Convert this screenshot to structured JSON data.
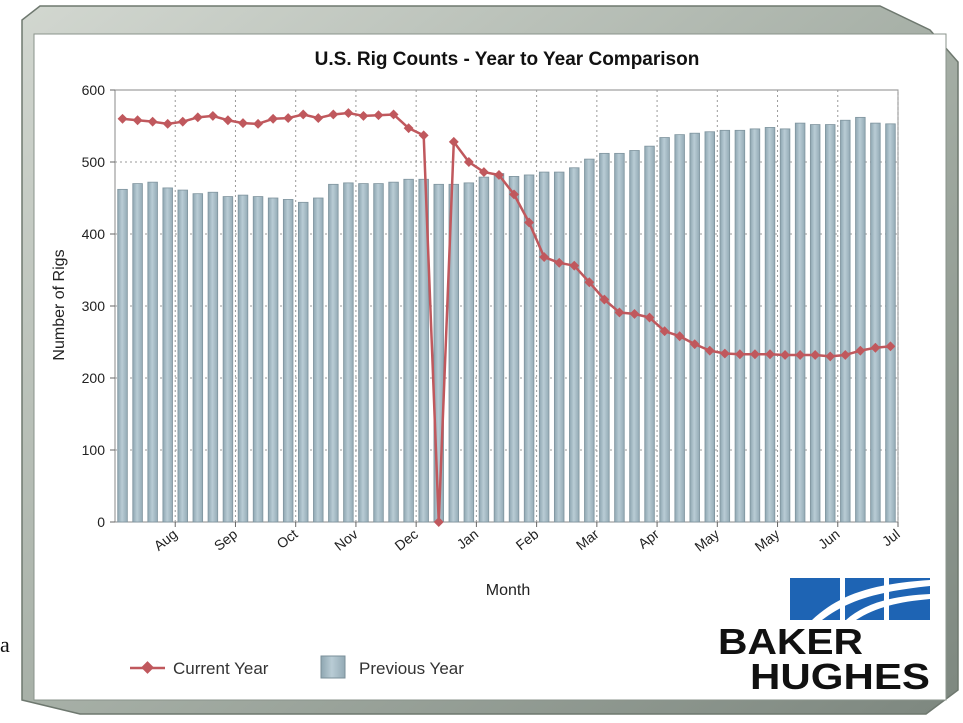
{
  "chart_data": {
    "type": "bar",
    "title": "U.S. Rig Counts - Year to Year Comparison",
    "xlabel": "Month",
    "ylabel": "Number of Rigs",
    "ylim": [
      0,
      600
    ],
    "yticks": [
      0,
      100,
      200,
      300,
      400,
      500,
      600
    ],
    "grid": true,
    "legend": "bottom-left",
    "month_ticks": [
      {
        "label": "Aug",
        "index": 3
      },
      {
        "label": "Sep",
        "index": 7
      },
      {
        "label": "Oct",
        "index": 11
      },
      {
        "label": "Nov",
        "index": 15
      },
      {
        "label": "Dec",
        "index": 19
      },
      {
        "label": "Jan",
        "index": 23
      },
      {
        "label": "Feb",
        "index": 27
      },
      {
        "label": "Mar",
        "index": 31
      },
      {
        "label": "Apr",
        "index": 35
      },
      {
        "label": "May",
        "index": 39
      },
      {
        "label": "May",
        "index": 43
      },
      {
        "label": "Jun",
        "index": 47
      },
      {
        "label": "Jul",
        "index": 51
      }
    ],
    "series": [
      {
        "name": "Previous Year",
        "kind": "bar",
        "color": "#a9bec8",
        "values": [
          462,
          470,
          472,
          464,
          461,
          456,
          458,
          452,
          454,
          452,
          450,
          448,
          444,
          450,
          469,
          471,
          470,
          470,
          472,
          476,
          476,
          469,
          469,
          471,
          479,
          484,
          480,
          482,
          486,
          486,
          492,
          504,
          512,
          512,
          516,
          522,
          534,
          538,
          540,
          542,
          544,
          544,
          546,
          548,
          546,
          554,
          552,
          552,
          558,
          562,
          554,
          553
        ]
      },
      {
        "name": "Current Year",
        "kind": "line",
        "color": "#c0585d",
        "values": [
          560,
          558,
          556,
          553,
          556,
          562,
          564,
          558,
          554,
          553,
          560,
          561,
          566,
          561,
          566,
          568,
          564,
          565,
          566,
          547,
          537,
          0,
          528,
          500,
          486,
          482,
          455,
          416,
          368,
          360,
          356,
          333,
          309,
          291,
          289,
          284,
          265,
          258,
          247,
          238,
          234,
          233,
          233,
          233,
          232,
          232,
          232,
          230,
          232,
          238,
          242,
          244
        ]
      }
    ]
  },
  "logo": {
    "line1": "BAKER",
    "line2": "HUGHES",
    "color": "#1e64b4"
  },
  "stray_text": "a"
}
